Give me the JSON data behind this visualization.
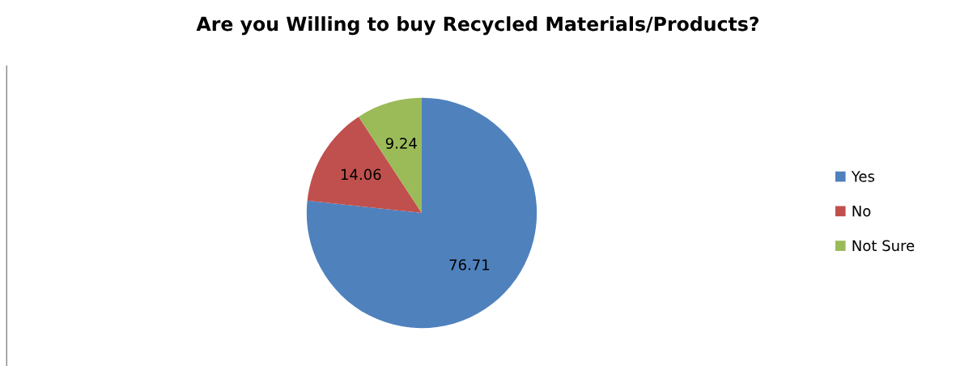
{
  "chart_data": {
    "type": "pie",
    "title": "Are you Willing to buy Recycled Materials/Products?",
    "categories": [
      "Yes",
      "No",
      "Not Sure"
    ],
    "values": [
      76.71,
      14.06,
      9.24
    ],
    "colors": [
      "#4f81bd",
      "#c0504d",
      "#9bbb59"
    ],
    "data_labels": true,
    "legend": "right"
  }
}
